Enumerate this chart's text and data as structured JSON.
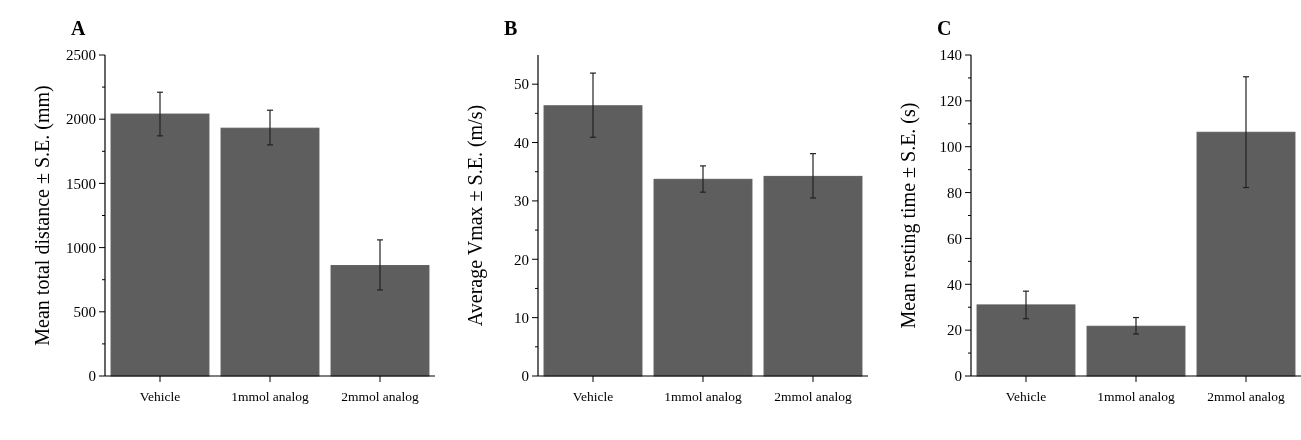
{
  "chart_data": [
    {
      "type": "bar",
      "title": "A",
      "ylabel": "Mean total distance ± S.E. (mm)",
      "categories": [
        "Vehicle",
        "1mmol analog",
        "2mmol analog"
      ],
      "values": [
        2040,
        1930,
        860
      ],
      "errors": [
        [
          1870,
          2210
        ],
        [
          1800,
          2070
        ],
        [
          670,
          1060
        ]
      ],
      "color": "#5e5e5e",
      "ylim": [
        0,
        2500
      ],
      "yticks": [
        0,
        {
          "value": 250,
          "label": null
        },
        500,
        {
          "value": 750,
          "label": null
        },
        1000,
        {
          "value": 1250,
          "label": null
        },
        1500,
        {
          "value": 1750,
          "label": null
        },
        2000,
        {
          "value": 2250,
          "label": null
        },
        2500
      ],
      "grid": false
    },
    {
      "type": "bar",
      "title": "B",
      "ylabel": "Average Vmax ± S.E. (m/s)",
      "categories": [
        "Vehicle",
        "1mmol analog",
        "2mmol analog"
      ],
      "values": [
        46.3,
        33.7,
        34.2
      ],
      "errors": [
        [
          40.9,
          51.9
        ],
        [
          31.5,
          36.0
        ],
        [
          30.5,
          38.1
        ]
      ],
      "color": "#5e5e5e",
      "ylim": [
        0,
        55
      ],
      "yticks": [
        0,
        {
          "value": 5,
          "label": null
        },
        10,
        {
          "value": 15,
          "label": null
        },
        20,
        {
          "value": 25,
          "label": null
        },
        30,
        {
          "value": 35,
          "label": null
        },
        40,
        {
          "value": 45,
          "label": null
        },
        50
      ],
      "grid": false
    },
    {
      "type": "bar",
      "title": "C",
      "ylabel": "Mean resting time ± S.E. (s)",
      "categories": [
        "Vehicle",
        "1mmol analog",
        "2mmol analog"
      ],
      "values": [
        31,
        21.7,
        106.3
      ],
      "errors": [
        [
          25,
          37
        ],
        [
          18.3,
          25.5
        ],
        [
          82.2,
          130.5
        ]
      ],
      "color": "#5e5e5e",
      "ylim": [
        0,
        140
      ],
      "yticks": [
        0,
        {
          "value": 10,
          "label": null
        },
        20,
        {
          "value": 30,
          "label": null
        },
        40,
        {
          "value": 50,
          "label": null
        },
        60,
        {
          "value": 70,
          "label": null
        },
        80,
        {
          "value": 90,
          "label": null
        },
        100,
        {
          "value": 110,
          "label": null
        },
        120,
        {
          "value": 130,
          "label": null
        },
        140
      ],
      "grid": false
    }
  ]
}
